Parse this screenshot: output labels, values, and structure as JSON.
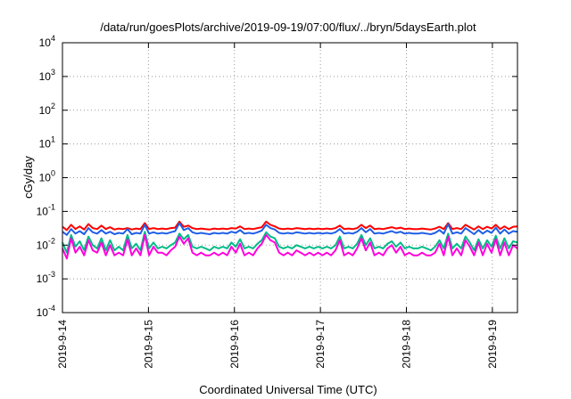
{
  "chart_data": {
    "type": "line",
    "title": "/data/run/goesPlots/archive/2019-09-19/07:00/flux/../bryn/5daysEarth.plot",
    "xlabel": "Coordinated Universal Time (UTC)",
    "ylabel": "cGy/day",
    "yscale": "log",
    "ylim": [
      0.0001,
      10000
    ],
    "yticks": [
      {
        "base": "10",
        "exp": "4",
        "value": 10000
      },
      {
        "base": "10",
        "exp": "3",
        "value": 1000
      },
      {
        "base": "10",
        "exp": "2",
        "value": 100
      },
      {
        "base": "10",
        "exp": "1",
        "value": 10
      },
      {
        "base": "10",
        "exp": "0",
        "value": 1
      },
      {
        "base": "10",
        "exp": "-1",
        "value": 0.1
      },
      {
        "base": "10",
        "exp": "-2",
        "value": 0.01
      },
      {
        "base": "10",
        "exp": "-3",
        "value": 0.001
      },
      {
        "base": "10",
        "exp": "-4",
        "value": 0.0001
      }
    ],
    "xlim": [
      "2019-09-14 00:00",
      "2019-09-19 07:00"
    ],
    "xticks": [
      "2019-9-14",
      "2019-9-15",
      "2019-9-16",
      "2019-9-17",
      "2019-9-18",
      "2019-9-19"
    ],
    "grid": true,
    "series": [
      {
        "color": "#ff0000",
        "values": [
          0.035,
          0.028,
          0.04,
          0.03,
          0.036,
          0.029,
          0.042,
          0.032,
          0.03,
          0.038,
          0.03,
          0.034,
          0.029,
          0.031,
          0.03,
          0.032,
          0.029,
          0.031,
          0.03,
          0.045,
          0.03,
          0.032,
          0.03,
          0.031,
          0.03,
          0.032,
          0.033,
          0.05,
          0.035,
          0.038,
          0.032,
          0.03,
          0.031,
          0.03,
          0.029,
          0.031,
          0.03,
          0.031,
          0.03,
          0.032,
          0.031,
          0.036,
          0.03,
          0.031,
          0.03,
          0.032,
          0.034,
          0.05,
          0.04,
          0.036,
          0.031,
          0.03,
          0.031,
          0.03,
          0.032,
          0.031,
          0.03,
          0.031,
          0.03,
          0.031,
          0.03,
          0.031,
          0.03,
          0.032,
          0.038,
          0.03,
          0.031,
          0.03,
          0.032,
          0.04,
          0.032,
          0.038,
          0.03,
          0.031,
          0.03,
          0.032,
          0.034,
          0.031,
          0.033,
          0.03,
          0.031,
          0.03,
          0.03,
          0.031,
          0.03,
          0.029,
          0.031,
          0.035,
          0.03,
          0.045,
          0.03,
          0.032,
          0.03,
          0.04,
          0.034,
          0.029,
          0.036,
          0.03,
          0.035,
          0.031,
          0.04,
          0.03,
          0.036,
          0.03,
          0.035,
          0.036
        ]
      },
      {
        "color": "#00bb88",
        "values": [
          0.012,
          0.006,
          0.02,
          0.009,
          0.013,
          0.007,
          0.018,
          0.01,
          0.008,
          0.016,
          0.007,
          0.014,
          0.007,
          0.009,
          0.007,
          0.02,
          0.008,
          0.011,
          0.007,
          0.025,
          0.008,
          0.012,
          0.008,
          0.009,
          0.008,
          0.01,
          0.012,
          0.022,
          0.015,
          0.02,
          0.009,
          0.008,
          0.009,
          0.008,
          0.007,
          0.009,
          0.008,
          0.009,
          0.008,
          0.012,
          0.009,
          0.015,
          0.008,
          0.009,
          0.008,
          0.011,
          0.014,
          0.024,
          0.018,
          0.016,
          0.009,
          0.008,
          0.009,
          0.008,
          0.01,
          0.009,
          0.008,
          0.009,
          0.008,
          0.009,
          0.008,
          0.009,
          0.008,
          0.01,
          0.018,
          0.008,
          0.009,
          0.008,
          0.011,
          0.02,
          0.01,
          0.016,
          0.008,
          0.009,
          0.008,
          0.011,
          0.013,
          0.009,
          0.012,
          0.008,
          0.009,
          0.008,
          0.008,
          0.009,
          0.008,
          0.007,
          0.009,
          0.014,
          0.008,
          0.022,
          0.008,
          0.011,
          0.008,
          0.018,
          0.012,
          0.007,
          0.015,
          0.008,
          0.014,
          0.009,
          0.019,
          0.008,
          0.016,
          0.008,
          0.013,
          0.012
        ]
      },
      {
        "color": "#1f5fe6",
        "values": [
          0.025,
          0.02,
          0.03,
          0.022,
          0.026,
          0.021,
          0.032,
          0.024,
          0.022,
          0.028,
          0.022,
          0.025,
          0.021,
          0.023,
          0.022,
          0.03,
          0.021,
          0.023,
          0.022,
          0.04,
          0.022,
          0.024,
          0.022,
          0.023,
          0.022,
          0.024,
          0.026,
          0.045,
          0.028,
          0.032,
          0.024,
          0.022,
          0.023,
          0.022,
          0.021,
          0.023,
          0.022,
          0.023,
          0.022,
          0.025,
          0.023,
          0.028,
          0.022,
          0.023,
          0.022,
          0.024,
          0.027,
          0.04,
          0.032,
          0.029,
          0.023,
          0.022,
          0.023,
          0.022,
          0.024,
          0.023,
          0.022,
          0.023,
          0.022,
          0.023,
          0.022,
          0.023,
          0.022,
          0.024,
          0.03,
          0.022,
          0.023,
          0.022,
          0.025,
          0.032,
          0.024,
          0.03,
          0.022,
          0.023,
          0.022,
          0.024,
          0.026,
          0.023,
          0.025,
          0.022,
          0.023,
          0.022,
          0.022,
          0.023,
          0.022,
          0.021,
          0.023,
          0.028,
          0.022,
          0.042,
          0.022,
          0.024,
          0.022,
          0.032,
          0.026,
          0.021,
          0.028,
          0.022,
          0.027,
          0.023,
          0.033,
          0.022,
          0.029,
          0.022,
          0.026,
          0.025
        ]
      },
      {
        "color": "#ff00dd",
        "values": [
          0.008,
          0.004,
          0.016,
          0.006,
          0.009,
          0.005,
          0.014,
          0.007,
          0.006,
          0.012,
          0.005,
          0.01,
          0.005,
          0.006,
          0.005,
          0.015,
          0.005,
          0.008,
          0.005,
          0.02,
          0.005,
          0.009,
          0.006,
          0.006,
          0.005,
          0.007,
          0.009,
          0.018,
          0.011,
          0.016,
          0.006,
          0.005,
          0.006,
          0.005,
          0.005,
          0.006,
          0.005,
          0.006,
          0.005,
          0.009,
          0.006,
          0.011,
          0.005,
          0.006,
          0.005,
          0.008,
          0.011,
          0.02,
          0.014,
          0.012,
          0.006,
          0.005,
          0.006,
          0.005,
          0.007,
          0.006,
          0.005,
          0.006,
          0.005,
          0.006,
          0.005,
          0.006,
          0.005,
          0.007,
          0.014,
          0.005,
          0.006,
          0.005,
          0.008,
          0.016,
          0.007,
          0.012,
          0.005,
          0.006,
          0.005,
          0.008,
          0.01,
          0.006,
          0.009,
          0.005,
          0.006,
          0.005,
          0.005,
          0.006,
          0.005,
          0.005,
          0.006,
          0.011,
          0.005,
          0.018,
          0.005,
          0.008,
          0.005,
          0.014,
          0.009,
          0.005,
          0.012,
          0.005,
          0.011,
          0.006,
          0.015,
          0.005,
          0.012,
          0.005,
          0.01,
          0.008
        ]
      }
    ]
  }
}
